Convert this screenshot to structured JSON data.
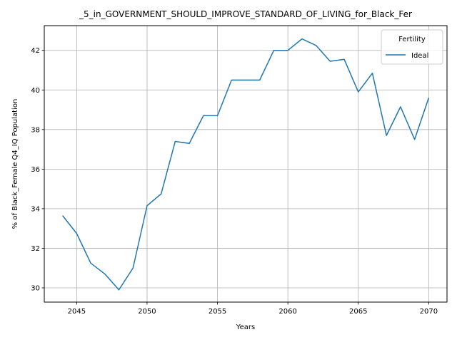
{
  "chart_data": {
    "type": "line",
    "title": "_5_in_GOVERNMENT_SHOULD_IMPROVE_STANDARD_OF_LIVING_for_Black_Fer",
    "xlabel": "Years",
    "ylabel": "% of Black_Female Q4_IQ Population",
    "xlim": [
      2042.7,
      2071.3
    ],
    "ylim": [
      29.28,
      43.25
    ],
    "xticks": [
      2045,
      2050,
      2055,
      2060,
      2065,
      2070
    ],
    "yticks": [
      30,
      32,
      34,
      36,
      38,
      40,
      42
    ],
    "grid": true,
    "legend": {
      "title": "Fertility",
      "placement": "top-right"
    },
    "series": [
      {
        "name": "Ideal",
        "color": "#1f77b4",
        "x": [
          2044,
          2045,
          2046,
          2047,
          2048,
          2049,
          2050,
          2051,
          2052,
          2053,
          2054,
          2055,
          2056,
          2057,
          2058,
          2059,
          2060,
          2061,
          2062,
          2063,
          2064,
          2065,
          2066,
          2067,
          2068,
          2069,
          2070
        ],
        "y": [
          33.65,
          32.75,
          31.25,
          30.7,
          29.9,
          31.0,
          34.15,
          34.75,
          37.4,
          37.3,
          38.7,
          38.7,
          40.5,
          40.5,
          40.5,
          42.0,
          42.0,
          42.58,
          42.25,
          41.45,
          41.55,
          39.9,
          40.85,
          37.7,
          39.15,
          37.5,
          39.6
        ]
      }
    ]
  }
}
